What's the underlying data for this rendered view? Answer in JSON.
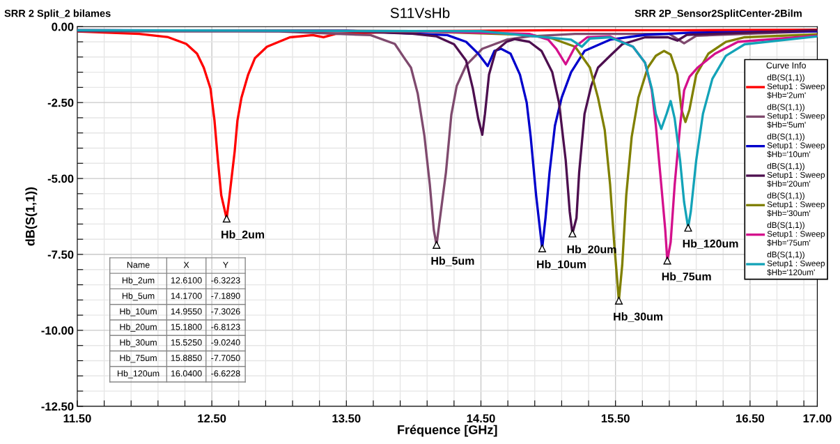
{
  "chart_data": {
    "type": "line",
    "title": "S11VsHb",
    "subtitle": "SRR 2 Split_2 bilames",
    "xlabel": "Fréquence [GHz]",
    "ylabel": "dB(S(1,1))",
    "legend_title": "Curve Info",
    "legend": "right",
    "grid": true,
    "marker": "none",
    "line_style": "solid",
    "xlim": [
      11.5,
      17.0
    ],
    "ylim": [
      -12.5,
      0.0
    ],
    "xticks": [
      {
        "value": 11.5,
        "label": "11.50"
      },
      {
        "value": 11.7,
        "label": null
      },
      {
        "value": 11.9,
        "label": null
      },
      {
        "value": 12.1,
        "label": null
      },
      {
        "value": 12.3,
        "label": null
      },
      {
        "value": 12.5,
        "label": "12.50"
      },
      {
        "value": 12.7,
        "label": null
      },
      {
        "value": 12.9,
        "label": null
      },
      {
        "value": 13.1,
        "label": null
      },
      {
        "value": 13.3,
        "label": null
      },
      {
        "value": 13.5,
        "label": "13.50"
      },
      {
        "value": 13.7,
        "label": null
      },
      {
        "value": 13.9,
        "label": null
      },
      {
        "value": 14.1,
        "label": null
      },
      {
        "value": 14.3,
        "label": null
      },
      {
        "value": 14.5,
        "label": "14.50"
      },
      {
        "value": 14.7,
        "label": null
      },
      {
        "value": 14.9,
        "label": null
      },
      {
        "value": 15.1,
        "label": null
      },
      {
        "value": 15.3,
        "label": null
      },
      {
        "value": 15.5,
        "label": "15.50"
      },
      {
        "value": 15.7,
        "label": null
      },
      {
        "value": 15.9,
        "label": null
      },
      {
        "value": 16.1,
        "label": null
      },
      {
        "value": 16.3,
        "label": null
      },
      {
        "value": 16.5,
        "label": "16.50"
      },
      {
        "value": 16.7,
        "label": null
      },
      {
        "value": 16.9,
        "label": null
      },
      {
        "value": 17.0,
        "label": "17.00"
      }
    ],
    "yticks": [
      {
        "value": 0.0,
        "label": "0.00"
      },
      {
        "value": -0.5,
        "label": null
      },
      {
        "value": -1.0,
        "label": null
      },
      {
        "value": -1.5,
        "label": null
      },
      {
        "value": -2.0,
        "label": null
      },
      {
        "value": -2.5,
        "label": "-2.50"
      },
      {
        "value": -3.0,
        "label": null
      },
      {
        "value": -3.5,
        "label": null
      },
      {
        "value": -4.0,
        "label": null
      },
      {
        "value": -4.5,
        "label": null
      },
      {
        "value": -5.0,
        "label": "-5.00"
      },
      {
        "value": -5.5,
        "label": null
      },
      {
        "value": -6.0,
        "label": null
      },
      {
        "value": -6.5,
        "label": null
      },
      {
        "value": -7.0,
        "label": null
      },
      {
        "value": -7.5,
        "label": "-7.50"
      },
      {
        "value": -8.0,
        "label": null
      },
      {
        "value": -8.5,
        "label": null
      },
      {
        "value": -9.0,
        "label": null
      },
      {
        "value": -9.5,
        "label": null
      },
      {
        "value": -10.0,
        "label": "-10.00"
      },
      {
        "value": -10.5,
        "label": null
      },
      {
        "value": -11.0,
        "label": null
      },
      {
        "value": -11.5,
        "label": null
      },
      {
        "value": -12.0,
        "label": null
      },
      {
        "value": -12.5,
        "label": "-12.50"
      }
    ],
    "series": [
      {
        "name": "dB(S(1,1))\nSetup1 : Sweep\n$Hb='2um'",
        "color": "#ff0000",
        "x": [
          11.5,
          11.96,
          12.17,
          12.31,
          12.39,
          12.44,
          12.49,
          12.52,
          12.545,
          12.57,
          12.61,
          12.63,
          12.67,
          12.69,
          12.72,
          12.77,
          12.82,
          12.91,
          13.08,
          13.25,
          13.33,
          13.42,
          14.0,
          15.0,
          16.0,
          17.0
        ],
        "values": [
          -0.16,
          -0.24,
          -0.34,
          -0.57,
          -0.89,
          -1.35,
          -2.04,
          -3.1,
          -4.4,
          -5.55,
          -6.3223,
          -5.62,
          -4.1,
          -3.1,
          -2.34,
          -1.58,
          -1.04,
          -0.66,
          -0.35,
          -0.28,
          -0.35,
          -0.24,
          -0.15,
          -0.12,
          -0.12,
          -0.1
        ]
      },
      {
        "name": "dB(S(1,1))\nSetup1 : Sweep\n$Hb='5um'",
        "color": "#7f4a6e",
        "x": [
          11.5,
          13.0,
          13.68,
          13.86,
          13.93,
          13.98,
          14.03,
          14.08,
          14.12,
          14.15,
          14.17,
          14.19,
          14.24,
          14.28,
          14.32,
          14.39,
          14.51,
          14.69,
          14.86,
          15.2,
          15.9,
          16.01,
          16.1,
          17.0
        ],
        "values": [
          -0.15,
          -0.16,
          -0.28,
          -0.57,
          -1.03,
          -1.35,
          -2.2,
          -3.6,
          -5.2,
          -6.7,
          -7.189,
          -6.5,
          -4.8,
          -2.9,
          -1.95,
          -1.27,
          -0.73,
          -0.43,
          -0.32,
          -0.24,
          -0.24,
          -0.55,
          -0.3,
          -0.15
        ]
      },
      {
        "name": "dB(S(1,1))\nSetup1 : Sweep\n$Hb='10um'",
        "color": "#0000cc",
        "x": [
          11.5,
          13.5,
          14.25,
          14.39,
          14.48,
          14.55,
          14.6,
          14.65,
          14.72,
          14.79,
          14.84,
          14.87,
          14.91,
          14.955,
          14.98,
          15.01,
          15.05,
          15.1,
          15.17,
          15.27,
          15.46,
          15.72,
          16.06,
          17.0
        ],
        "values": [
          -0.12,
          -0.13,
          -0.28,
          -0.5,
          -0.89,
          -1.3,
          -0.8,
          -0.73,
          -0.89,
          -1.58,
          -2.5,
          -3.64,
          -5.55,
          -7.3026,
          -6.3,
          -4.8,
          -3.26,
          -2.34,
          -1.5,
          -0.8,
          -0.43,
          -0.27,
          -0.2,
          -0.15
        ]
      },
      {
        "name": "dB(S(1,1))\nSetup1 : Sweep\n$Hb='20um'",
        "color": "#4d0f4f",
        "x": [
          11.5,
          13.5,
          13.99,
          14.17,
          14.3,
          14.39,
          14.44,
          14.48,
          14.51,
          14.53,
          14.56,
          14.61,
          14.69,
          14.75,
          14.86,
          14.95,
          15.03,
          15.08,
          15.13,
          15.16,
          15.18,
          15.21,
          15.23,
          15.27,
          15.32,
          15.37,
          15.46,
          15.55,
          15.72,
          15.89,
          15.96,
          16.03,
          17.0
        ],
        "values": [
          -0.13,
          -0.15,
          -0.23,
          -0.32,
          -0.58,
          -1.12,
          -2.04,
          -3.03,
          -3.56,
          -2.87,
          -1.58,
          -0.8,
          -0.5,
          -0.41,
          -0.5,
          -0.8,
          -1.5,
          -2.5,
          -4.4,
          -6.1,
          -6.8123,
          -6.3,
          -4.8,
          -2.87,
          -1.95,
          -1.35,
          -0.96,
          -0.58,
          -0.35,
          -0.35,
          -0.46,
          -0.27,
          -0.12
        ]
      },
      {
        "name": "dB(S(1,1))\nSetup1 : Sweep\n$Hb='30um'",
        "color": "#808000",
        "x": [
          11.5,
          14.0,
          14.86,
          15.03,
          15.2,
          15.31,
          15.37,
          15.42,
          15.46,
          15.49,
          15.525,
          15.55,
          15.58,
          15.62,
          15.67,
          15.74,
          15.8,
          15.86,
          15.91,
          15.96,
          15.99,
          16.02,
          16.05,
          16.1,
          16.19,
          16.32,
          16.46,
          17.0
        ],
        "values": [
          -0.12,
          -0.15,
          -0.27,
          -0.39,
          -0.66,
          -1.35,
          -2.34,
          -3.4,
          -5.2,
          -7.1,
          -9.024,
          -7.85,
          -5.55,
          -3.64,
          -2.34,
          -1.35,
          -0.96,
          -0.8,
          -0.92,
          -1.58,
          -2.73,
          -3.14,
          -2.73,
          -1.58,
          -0.89,
          -0.5,
          -0.35,
          -0.25
        ]
      },
      {
        "name": "dB(S(1,1))\nSetup1 : Sweep\n$Hb='75um'",
        "color": "#d4108c",
        "x": [
          11.5,
          14.0,
          14.86,
          15.0,
          15.06,
          15.13,
          15.2,
          15.29,
          15.46,
          15.63,
          15.72,
          15.77,
          15.8,
          15.84,
          15.87,
          15.885,
          15.91,
          15.94,
          15.98,
          16.01,
          16.05,
          16.11,
          16.24,
          16.41,
          17.0
        ],
        "values": [
          -0.12,
          -0.15,
          -0.24,
          -0.43,
          -0.73,
          -1.24,
          -0.66,
          -0.35,
          -0.32,
          -0.66,
          -1.19,
          -2.1,
          -3.26,
          -5.2,
          -6.7,
          -7.705,
          -7.1,
          -5.2,
          -3.26,
          -2.1,
          -1.65,
          -1.35,
          -0.89,
          -0.5,
          -0.3
        ]
      },
      {
        "name": "dB(S(1,1))\nSetup1 : Sweep\n$Hb='120um'",
        "color": "#13a3b8",
        "x": [
          11.5,
          14.5,
          15.17,
          15.25,
          15.31,
          15.46,
          15.63,
          15.72,
          15.77,
          15.8,
          15.84,
          15.88,
          15.91,
          15.94,
          15.98,
          16.01,
          16.04,
          16.06,
          16.1,
          16.15,
          16.22,
          16.32,
          16.46,
          17.0
        ],
        "values": [
          -0.12,
          -0.15,
          -0.43,
          -0.66,
          -0.39,
          -0.35,
          -0.66,
          -1.19,
          -2.04,
          -2.87,
          -3.37,
          -2.87,
          -2.45,
          -3.03,
          -4.4,
          -5.78,
          -6.6228,
          -6.08,
          -4.4,
          -2.87,
          -1.72,
          -0.96,
          -0.58,
          -0.32
        ]
      }
    ],
    "annotations": [
      "SRR 2P_Sensor2SplitCenter-2Bilm",
      "Name",
      "X",
      "Y",
      "Hb_2um",
      "12.6100",
      "-6.3223",
      "Hb_5um",
      "14.1700",
      "-7.1890",
      "Hb_10um",
      "14.9550",
      "-7.3026",
      "Hb_20um",
      "15.1800",
      "-6.8123",
      "Hb_30um",
      "15.5250",
      "-9.0240",
      "Hb_75um",
      "15.8850",
      "-7.7050",
      "Hb_120um",
      "16.0400",
      "-6.6228",
      {
        "text": "Hb_2um",
        "x": 12.61,
        "y": -6.3223
      },
      {
        "text": "Hb_5um",
        "x": 14.17,
        "y": -7.189
      },
      {
        "text": "Hb_10um",
        "x": 14.955,
        "y": -7.3026
      },
      {
        "text": "Hb_20um",
        "x": 15.18,
        "y": -6.8123
      },
      {
        "text": "Hb_30um",
        "x": 15.525,
        "y": -9.024
      },
      {
        "text": "Hb_75um",
        "x": 15.885,
        "y": -7.705
      },
      {
        "text": "Hb_120um",
        "x": 16.04,
        "y": -6.6228
      }
    ]
  }
}
